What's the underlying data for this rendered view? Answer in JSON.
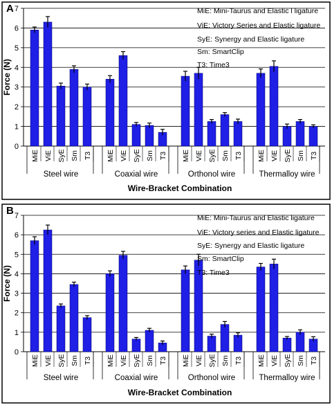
{
  "chart_data": [
    {
      "panel_label": "A",
      "type": "bar",
      "ylabel": "Force (N)",
      "xlabel": "Wire-Bracket Combination",
      "ylim": [
        0,
        7
      ],
      "yticks": [
        0,
        1,
        2,
        3,
        4,
        5,
        6,
        7
      ],
      "grid": "horizontal",
      "legend_position": "top-right",
      "bar_color": "#1f1fe6",
      "groups": [
        {
          "name": "Steel wire",
          "categories": [
            "MiE",
            "ViE",
            "SyE",
            "Sm",
            "T3"
          ],
          "values": [
            5.9,
            6.3,
            3.05,
            3.9,
            3.0
          ],
          "errors": [
            0.15,
            0.28,
            0.15,
            0.18,
            0.15
          ]
        },
        {
          "name": "Coaxial wire",
          "categories": [
            "MiE",
            "ViE",
            "SyE",
            "Sm",
            "T3"
          ],
          "values": [
            3.4,
            4.6,
            1.1,
            1.05,
            0.7
          ],
          "errors": [
            0.18,
            0.2,
            0.1,
            0.12,
            0.15
          ]
        },
        {
          "name": "Orthonol wire",
          "categories": [
            "MiE",
            "ViE",
            "SyE",
            "Sm",
            "T3"
          ],
          "values": [
            3.55,
            3.7,
            1.25,
            1.6,
            1.25
          ],
          "errors": [
            0.25,
            0.3,
            0.1,
            0.1,
            0.12
          ]
        },
        {
          "name": "Thermalloy wire",
          "categories": [
            "MiE",
            "ViE",
            "SyE",
            "Sm",
            "T3"
          ],
          "values": [
            3.7,
            4.05,
            1.0,
            1.25,
            1.0
          ],
          "errors": [
            0.22,
            0.28,
            0.12,
            0.1,
            0.08
          ]
        }
      ],
      "legend_lines": [
        "MiE: Mini-Taurus and Elastic l ligature",
        "ViE: Victory Series and Elastic ligature",
        "SyE: Synergy and Elastic ligature",
        "Sm: SmartClip",
        "T3: Time3"
      ]
    },
    {
      "panel_label": "B",
      "type": "bar",
      "ylabel": "Force (N)",
      "xlabel": "Wire-Bracket Combination",
      "ylim": [
        0,
        7
      ],
      "yticks": [
        0,
        1,
        2,
        3,
        4,
        5,
        6,
        7
      ],
      "grid": "horizontal",
      "legend_position": "top-right",
      "bar_color": "#1f1fe6",
      "groups": [
        {
          "name": "Steel wire",
          "categories": [
            "MiE",
            "ViE",
            "SyE",
            "Sm",
            "T3"
          ],
          "values": [
            5.7,
            6.25,
            2.35,
            3.45,
            1.75
          ],
          "errors": [
            0.2,
            0.25,
            0.1,
            0.12,
            0.1
          ]
        },
        {
          "name": "Coaxial wire",
          "categories": [
            "MiE",
            "ViE",
            "SyE",
            "Sm",
            "T3"
          ],
          "values": [
            4.0,
            4.95,
            0.65,
            1.1,
            0.45
          ],
          "errors": [
            0.15,
            0.2,
            0.08,
            0.1,
            0.1
          ]
        },
        {
          "name": "Orthonol wire",
          "categories": [
            "MiE",
            "ViE",
            "SyE",
            "Sm",
            "T3"
          ],
          "values": [
            4.2,
            4.7,
            0.8,
            1.4,
            0.85
          ],
          "errors": [
            0.2,
            0.3,
            0.1,
            0.15,
            0.12
          ]
        },
        {
          "name": "Thermalloy wire",
          "categories": [
            "MiE",
            "ViE",
            "SyE",
            "Sm",
            "T3"
          ],
          "values": [
            4.35,
            4.5,
            0.7,
            1.0,
            0.65
          ],
          "errors": [
            0.18,
            0.25,
            0.08,
            0.12,
            0.12
          ]
        }
      ],
      "legend_lines": [
        "MiE: Mini-Taurus and Elastic ligature",
        "ViE: Victory series and Elastic ligature",
        "SyE: Synergy and Elastic ligature",
        "Sm: SmartClip",
        "T3: Time3"
      ]
    }
  ]
}
